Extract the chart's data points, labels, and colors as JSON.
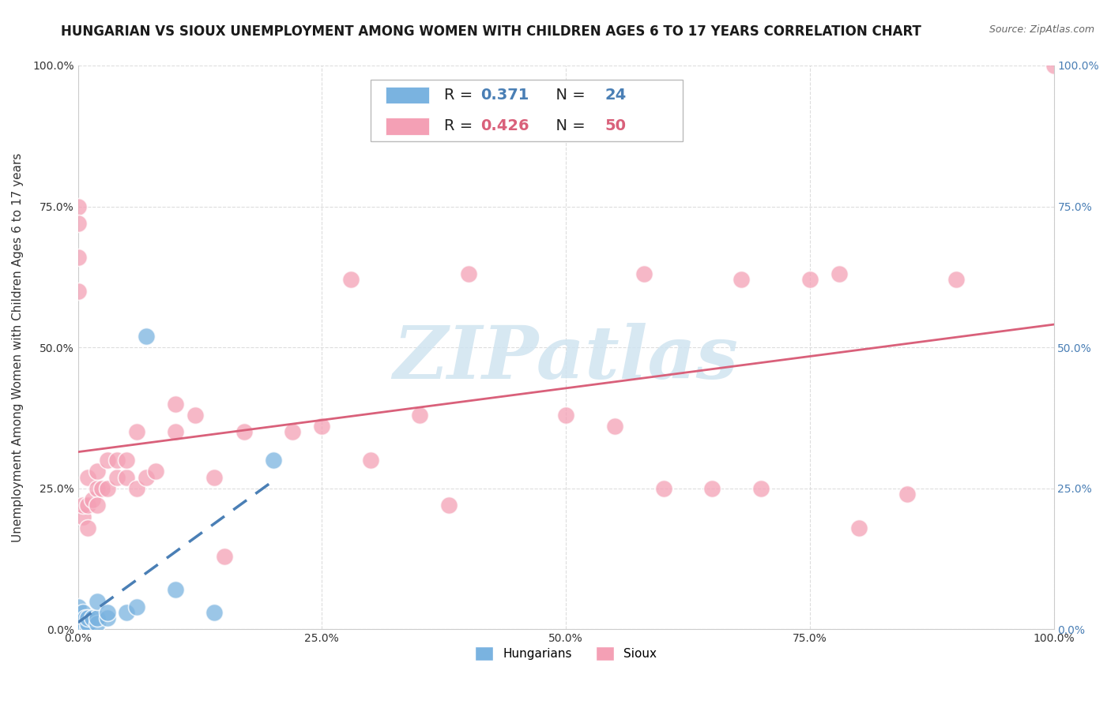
{
  "title": "HUNGARIAN VS SIOUX UNEMPLOYMENT AMONG WOMEN WITH CHILDREN AGES 6 TO 17 YEARS CORRELATION CHART",
  "source": "Source: ZipAtlas.com",
  "ylabel": "Unemployment Among Women with Children Ages 6 to 17 years",
  "xlim": [
    0.0,
    1.0
  ],
  "ylim": [
    0.0,
    1.0
  ],
  "xticks": [
    0.0,
    0.25,
    0.5,
    0.75,
    1.0
  ],
  "xticklabels": [
    "0.0%",
    "25.0%",
    "50.0%",
    "75.0%",
    "100.0%"
  ],
  "yticks": [
    0.0,
    0.25,
    0.5,
    0.75,
    1.0
  ],
  "yticklabels": [
    "0.0%",
    "25.0%",
    "50.0%",
    "75.0%",
    "100.0%"
  ],
  "hungarian_color": "#7ab3e0",
  "sioux_color": "#f4a0b5",
  "hungarian_R": 0.371,
  "hungarian_N": 24,
  "sioux_R": 0.426,
  "sioux_N": 50,
  "hungarian_line_color": "#4a7fb5",
  "sioux_line_color": "#d9607a",
  "watermark_text": "ZIPatlas",
  "watermark_color": "#d0e4f0",
  "background_color": "#ffffff",
  "grid_color": "#dddddd",
  "hungarian_x": [
    0.0,
    0.0,
    0.0,
    0.0,
    0.0,
    0.005,
    0.005,
    0.005,
    0.008,
    0.01,
    0.01,
    0.01,
    0.015,
    0.02,
    0.02,
    0.02,
    0.03,
    0.03,
    0.05,
    0.06,
    0.07,
    0.1,
    0.14,
    0.2
  ],
  "hungarian_y": [
    0.0,
    0.005,
    0.01,
    0.02,
    0.04,
    0.0,
    0.01,
    0.03,
    0.02,
    0.0,
    0.01,
    0.02,
    0.02,
    0.01,
    0.02,
    0.05,
    0.02,
    0.03,
    0.03,
    0.04,
    0.52,
    0.07,
    0.03,
    0.3
  ],
  "sioux_x": [
    0.0,
    0.0,
    0.0,
    0.0,
    0.005,
    0.005,
    0.01,
    0.01,
    0.01,
    0.015,
    0.02,
    0.02,
    0.02,
    0.025,
    0.03,
    0.03,
    0.04,
    0.04,
    0.05,
    0.05,
    0.06,
    0.06,
    0.07,
    0.08,
    0.1,
    0.1,
    0.12,
    0.14,
    0.15,
    0.17,
    0.22,
    0.25,
    0.28,
    0.3,
    0.35,
    0.38,
    0.4,
    0.5,
    0.55,
    0.58,
    0.6,
    0.65,
    0.68,
    0.7,
    0.75,
    0.78,
    0.8,
    0.85,
    0.9,
    1.0
  ],
  "sioux_y": [
    0.75,
    0.72,
    0.66,
    0.6,
    0.2,
    0.22,
    0.18,
    0.22,
    0.27,
    0.23,
    0.25,
    0.28,
    0.22,
    0.25,
    0.25,
    0.3,
    0.27,
    0.3,
    0.27,
    0.3,
    0.25,
    0.35,
    0.27,
    0.28,
    0.35,
    0.4,
    0.38,
    0.27,
    0.13,
    0.35,
    0.35,
    0.36,
    0.62,
    0.3,
    0.38,
    0.22,
    0.63,
    0.38,
    0.36,
    0.63,
    0.25,
    0.25,
    0.62,
    0.25,
    0.62,
    0.63,
    0.18,
    0.24,
    0.62,
    1.0
  ],
  "title_fontsize": 12,
  "axis_label_fontsize": 11,
  "tick_fontsize": 10,
  "legend_fontsize": 14,
  "right_tick_color": "#4a7fb5"
}
